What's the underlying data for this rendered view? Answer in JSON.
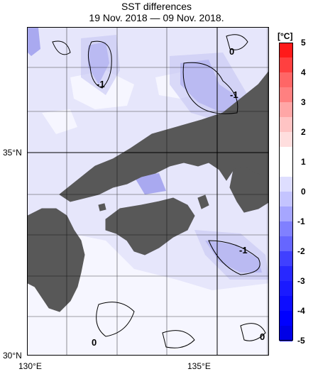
{
  "header": {
    "title": "SST differences",
    "period": "19 Nov. 2018 — 09 Nov. 2018."
  },
  "map": {
    "lat_labels": [
      "35°N",
      "30°N"
    ],
    "lon_labels": [
      "130°E",
      "135°E"
    ],
    "contour_labels": [
      "-1",
      "0",
      "-1",
      "-1",
      "0",
      "0"
    ],
    "land_color": "#585858",
    "ocean_base_color": "#e4e4fb"
  },
  "colorbar": {
    "unit": "[°C]",
    "ticks": [
      "5",
      "4",
      "3",
      "2",
      "1",
      "0",
      "-1",
      "-2",
      "-3",
      "-4",
      "-5"
    ],
    "colors": [
      "#ff1a1a",
      "#ff4040",
      "#ff6666",
      "#ff8080",
      "#ffa6a6",
      "#ffc4c4",
      "#ffdede",
      "#ffffff",
      "#ffffff",
      "#dedeff",
      "#c4c4ff",
      "#a6a6ff",
      "#8080ff",
      "#6666ff",
      "#4040ff",
      "#2828ff",
      "#1a1aff",
      "#0d0dff",
      "#0000ff",
      "#0000e6"
    ]
  }
}
